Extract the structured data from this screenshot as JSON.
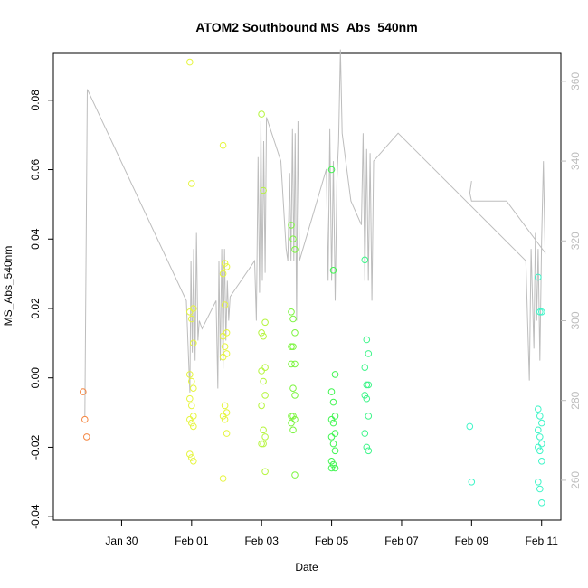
{
  "chart_data": {
    "type": "scatter",
    "title": "ATOM2 Southbound MS_Abs_540nm",
    "xlabel": "Date",
    "ylabel": "MS_Abs_540nm",
    "x_ticks": [
      "Jan 30",
      "Feb 01",
      "Feb 03",
      "Feb 05",
      "Feb 07",
      "Feb 09",
      "Feb 11"
    ],
    "x_tick_values": [
      1,
      3,
      5,
      7,
      9,
      11,
      13
    ],
    "xlim": [
      -0.95,
      13.55
    ],
    "ylim": [
      -0.041,
      0.0935
    ],
    "y_ticks": [
      "-0.04",
      "-0.02",
      "0.00",
      "0.02",
      "0.04",
      "0.06",
      "0.08"
    ],
    "y_tick_values": [
      -0.04,
      -0.02,
      0.0,
      0.02,
      0.04,
      0.06,
      0.08
    ],
    "y2_ticks": [
      "260",
      "280",
      "300",
      "320",
      "340",
      "360"
    ],
    "y2_tick_values": [
      260,
      280,
      300,
      320,
      340,
      360
    ],
    "y2lim": [
      250,
      367
    ],
    "colors": {
      "orange": "#f5853f",
      "yellow": "#e6f53f",
      "yellowgreen": "#b6f53f",
      "lightgreen": "#7cf53f",
      "green": "#3ff54f",
      "green2": "#3ff58a",
      "teal": "#3ff5c8",
      "secondary_line": "#bdbdbd",
      "right_axis": "#bdbdbd"
    },
    "points": [
      {
        "color": "orange",
        "x": -0.05,
        "values": [
          -0.004,
          -0.012,
          -0.017
        ]
      },
      {
        "color": "yellow",
        "x": 3.0,
        "values": [
          0.091,
          0.056,
          0.02,
          0.019,
          0.017,
          0.01,
          0.001,
          -0.001,
          -0.003,
          -0.006,
          -0.008,
          -0.011,
          -0.012,
          -0.013,
          -0.014,
          -0.022,
          -0.023,
          -0.024
        ]
      },
      {
        "color": "yellow",
        "x": 3.95,
        "values": [
          0.067,
          0.033,
          0.032,
          0.03,
          0.021,
          0.013,
          0.012,
          0.009,
          0.007,
          0.006,
          -0.008,
          -0.01,
          -0.011,
          -0.012,
          -0.016,
          -0.029
        ]
      },
      {
        "color": "yellowgreen",
        "x": 5.05,
        "values": [
          0.076,
          0.054,
          0.016,
          0.013,
          0.012,
          0.003,
          0.002,
          -0.001,
          -0.005,
          -0.008,
          -0.015,
          -0.017,
          -0.019,
          -0.019,
          -0.027
        ]
      },
      {
        "color": "lightgreen",
        "x": 5.9,
        "values": [
          0.044,
          0.04,
          0.037,
          0.019,
          0.017,
          0.013,
          0.009,
          0.009,
          0.004,
          0.004,
          -0.003,
          -0.005,
          -0.011,
          -0.011,
          -0.012,
          -0.013,
          -0.015,
          -0.028
        ]
      },
      {
        "color": "green",
        "x": 7.05,
        "values": [
          0.06,
          0.031,
          0.001,
          -0.004,
          -0.007,
          -0.011,
          -0.012,
          -0.013,
          -0.016,
          -0.017,
          -0.019,
          -0.021,
          -0.024,
          -0.025,
          -0.026,
          -0.026
        ]
      },
      {
        "color": "green2",
        "x": 8.0,
        "values": [
          0.034,
          0.011,
          0.007,
          0.003,
          -0.002,
          -0.002,
          -0.005,
          -0.006,
          -0.011,
          -0.016,
          -0.02,
          -0.021
        ]
      },
      {
        "color": "teal",
        "x": 11.0,
        "values": [
          -0.014,
          -0.03
        ]
      },
      {
        "color": "teal",
        "x": 12.95,
        "values": [
          0.029,
          0.019,
          0.019,
          -0.009,
          -0.011,
          -0.013,
          -0.015,
          -0.017,
          -0.019,
          -0.02,
          -0.021,
          -0.024,
          -0.03,
          -0.032,
          -0.036
        ]
      }
    ],
    "secondary_line": {
      "axis": "right",
      "points": [
        [
          -0.05,
          276
        ],
        [
          0.02,
          358
        ],
        [
          2.85,
          305
        ],
        [
          2.95,
          282
        ],
        [
          2.98,
          315
        ],
        [
          3.02,
          292
        ],
        [
          3.06,
          318
        ],
        [
          3.1,
          290
        ],
        [
          3.14,
          322
        ],
        [
          3.18,
          295
        ],
        [
          3.22,
          300
        ],
        [
          3.3,
          298
        ],
        [
          3.7,
          305
        ],
        [
          3.75,
          283
        ],
        [
          3.78,
          315
        ],
        [
          3.82,
          290
        ],
        [
          3.86,
          318
        ],
        [
          3.9,
          288
        ],
        [
          3.94,
          318
        ],
        [
          3.98,
          295
        ],
        [
          4.02,
          310
        ],
        [
          4.06,
          300
        ],
        [
          4.1,
          306
        ],
        [
          4.8,
          315
        ],
        [
          4.85,
          300
        ],
        [
          4.9,
          341
        ],
        [
          4.94,
          307
        ],
        [
          4.98,
          350
        ],
        [
          5.02,
          310
        ],
        [
          5.06,
          345
        ],
        [
          5.1,
          312
        ],
        [
          5.14,
          351
        ],
        [
          5.55,
          340
        ],
        [
          5.7,
          318
        ],
        [
          5.75,
          315
        ],
        [
          5.8,
          337
        ],
        [
          5.84,
          315
        ],
        [
          5.88,
          348
        ],
        [
          5.92,
          315
        ],
        [
          5.96,
          347
        ],
        [
          6.0,
          300
        ],
        [
          6.04,
          350
        ],
        [
          6.08,
          315
        ],
        [
          6.85,
          338
        ],
        [
          6.9,
          310
        ],
        [
          6.95,
          348
        ],
        [
          7.0,
          310
        ],
        [
          7.05,
          340
        ],
        [
          7.1,
          305
        ],
        [
          7.15,
          335
        ],
        [
          7.2,
          345
        ],
        [
          7.25,
          368
        ],
        [
          7.3,
          347
        ],
        [
          7.55,
          330
        ],
        [
          7.85,
          324
        ],
        [
          7.9,
          347
        ],
        [
          7.95,
          310
        ],
        [
          8.0,
          343
        ],
        [
          8.05,
          310
        ],
        [
          8.1,
          342
        ],
        [
          8.15,
          305
        ],
        [
          8.2,
          340
        ],
        [
          8.9,
          347
        ],
        [
          12.55,
          315
        ],
        [
          12.65,
          285
        ],
        [
          12.7,
          318
        ],
        [
          12.78,
          293
        ],
        [
          12.82,
          322
        ],
        [
          12.86,
          300
        ],
        [
          12.9,
          318
        ],
        [
          12.95,
          290
        ],
        [
          13.0,
          320
        ],
        [
          13.05,
          340
        ],
        [
          13.1,
          317
        ],
        [
          12.0,
          330
        ],
        [
          11.0,
          330
        ],
        [
          10.95,
          332
        ],
        [
          11.0,
          335
        ]
      ]
    }
  }
}
